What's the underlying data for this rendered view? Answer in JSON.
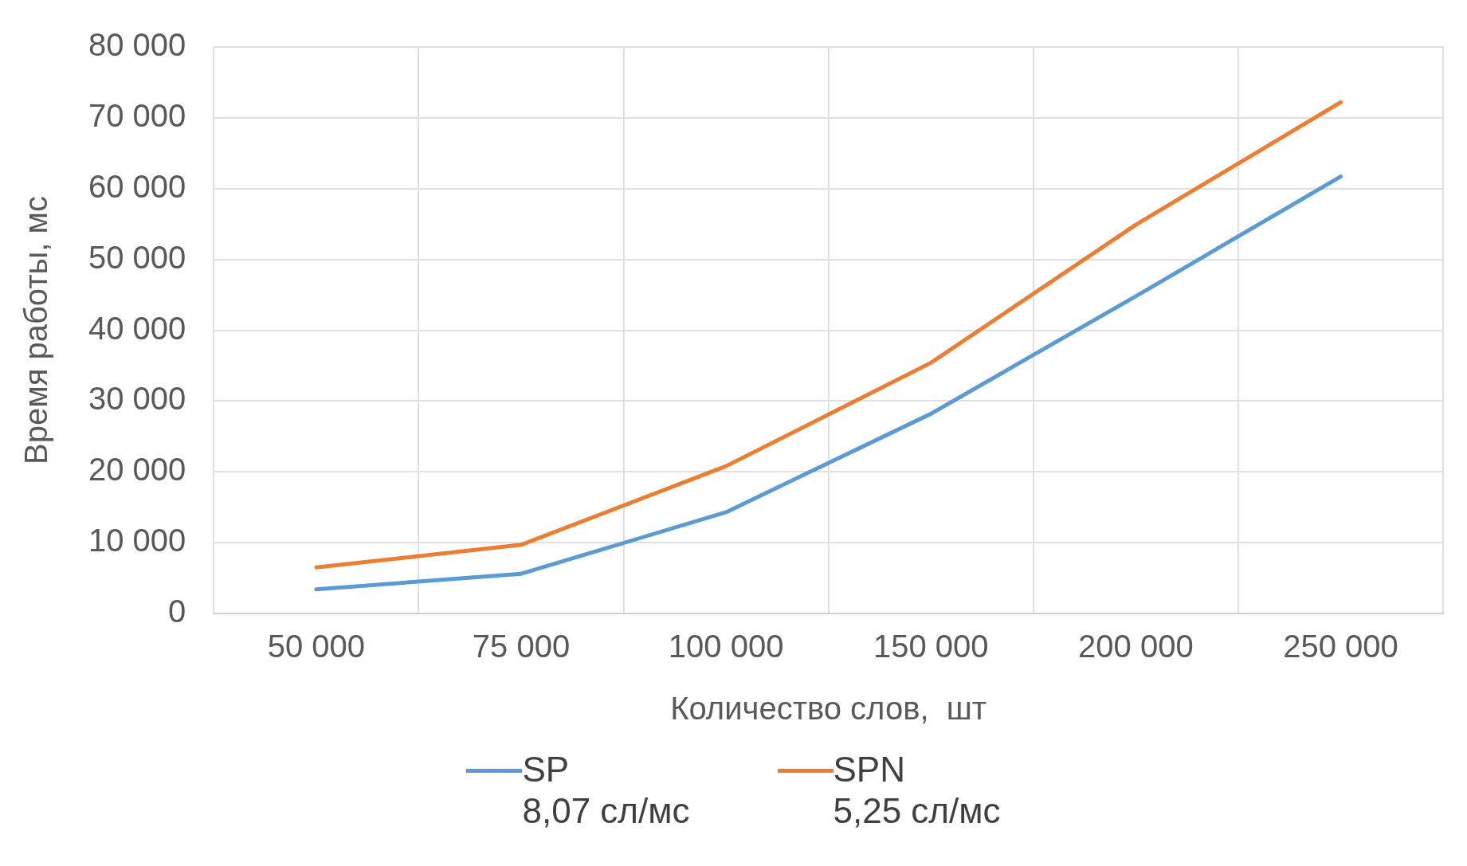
{
  "chart_data": {
    "type": "line",
    "xlabel": "Количество слов,  шт",
    "ylabel": "Время работы, мс",
    "categories": [
      "50 000",
      "75 000",
      "100 000",
      "150 000",
      "200 000",
      "250 000"
    ],
    "series": [
      {
        "name": "SP\n8,07 сл/мс",
        "color": "#5b9bd5",
        "values": [
          3400,
          5600,
          14300,
          28200,
          44800,
          61700
        ]
      },
      {
        "name": "SPN\n5,25 сл/мс",
        "color": "#ed7d31",
        "values": [
          6500,
          9700,
          20800,
          35400,
          54900,
          72200
        ]
      }
    ],
    "ylim": [
      0,
      80000
    ],
    "yticks": [
      {
        "value": 0,
        "label": "0"
      },
      {
        "value": 10000,
        "label": "10 000"
      },
      {
        "value": 20000,
        "label": "20 000"
      },
      {
        "value": 30000,
        "label": "30 000"
      },
      {
        "value": 40000,
        "label": "40 000"
      },
      {
        "value": 50000,
        "label": "50 000"
      },
      {
        "value": 60000,
        "label": "60 000"
      },
      {
        "value": 70000,
        "label": "70 000"
      },
      {
        "value": 80000,
        "label": "80 000"
      }
    ],
    "grid": true,
    "legend": "bottom",
    "marker": "none",
    "line_style": "solid"
  }
}
